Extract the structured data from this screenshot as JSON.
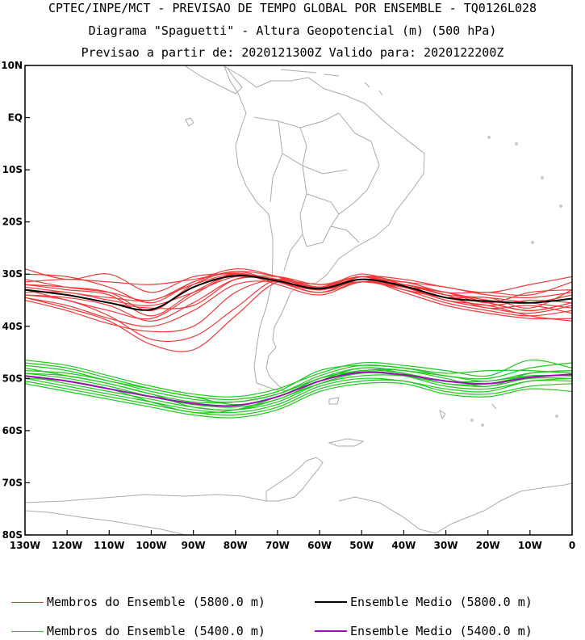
{
  "chart_data": {
    "type": "line",
    "title_lines": [
      "CPTEC/INPE/MCT - PREVISAO DE TEMPO GLOBAL POR ENSEMBLE - TQ0126L028",
      "Diagrama \"Spaguetti\" - Altura Geopotencial (m) (500 hPa)",
      "Previsao a partir de: 2020121300Z  Valido para: 2020122200Z"
    ],
    "x_range": [
      -130,
      0
    ],
    "y_range": [
      -80,
      10
    ],
    "x_ticks": [
      {
        "v": -130,
        "label": "130W"
      },
      {
        "v": -120,
        "label": "120W"
      },
      {
        "v": -110,
        "label": "110W"
      },
      {
        "v": -100,
        "label": "100W"
      },
      {
        "v": -90,
        "label": "90W"
      },
      {
        "v": -80,
        "label": "80W"
      },
      {
        "v": -70,
        "label": "70W"
      },
      {
        "v": -60,
        "label": "60W"
      },
      {
        "v": -50,
        "label": "50W"
      },
      {
        "v": -40,
        "label": "40W"
      },
      {
        "v": -30,
        "label": "30W"
      },
      {
        "v": -20,
        "label": "20W"
      },
      {
        "v": -10,
        "label": "10W"
      },
      {
        "v": 0,
        "label": "0"
      }
    ],
    "y_ticks": [
      {
        "v": 10,
        "label": "10N"
      },
      {
        "v": 0,
        "label": "EQ"
      },
      {
        "v": -10,
        "label": "10S"
      },
      {
        "v": -20,
        "label": "20S"
      },
      {
        "v": -30,
        "label": "30S"
      },
      {
        "v": -40,
        "label": "40S"
      },
      {
        "v": -50,
        "label": "50S"
      },
      {
        "v": -60,
        "label": "60S"
      },
      {
        "v": -70,
        "label": "70S"
      },
      {
        "v": -80,
        "label": "80S"
      }
    ],
    "x_knots": [
      -130,
      -120,
      -110,
      -100,
      -90,
      -80,
      -70,
      -60,
      -50,
      -40,
      -30,
      -20,
      -10,
      0
    ],
    "mean_5800": [
      -33.0,
      -34.0,
      -35.5,
      -36.8,
      -32.5,
      -30.3,
      -31.3,
      -32.8,
      -31.0,
      -32.3,
      -34.5,
      -35.2,
      -35.5,
      -34.7
    ],
    "mean_5400": [
      -49.5,
      -50.5,
      -52.0,
      -53.5,
      -54.8,
      -55.2,
      -53.5,
      -50.5,
      -48.8,
      -49.3,
      -50.5,
      -51.0,
      -49.8,
      -49.2
    ],
    "members_5800": [
      [
        -29.0,
        -31.0,
        -30.0,
        -33.5,
        -30.5,
        -30.0,
        -31.0,
        -33.0,
        -30.5,
        -31.0,
        -32.5,
        -33.5,
        -32.0,
        -30.5
      ],
      [
        -30.0,
        -30.5,
        -32.5,
        -35.5,
        -31.5,
        -29.5,
        -30.5,
        -32.5,
        -31.5,
        -31.5,
        -33.5,
        -33.5,
        -34.0,
        -31.5
      ],
      [
        -31.5,
        -31.0,
        -31.5,
        -32.0,
        -31.0,
        -29.8,
        -31.3,
        -32.5,
        -30.0,
        -32.0,
        -33.5,
        -35.5,
        -33.5,
        -33.0
      ],
      [
        -32.0,
        -32.5,
        -33.5,
        -37.0,
        -32.0,
        -29.5,
        -31.5,
        -33.5,
        -31.0,
        -32.5,
        -34.5,
        -34.5,
        -36.5,
        -33.0
      ],
      [
        -33.5,
        -33.5,
        -35.0,
        -36.0,
        -33.5,
        -30.5,
        -31.0,
        -32.0,
        -31.5,
        -32.0,
        -33.5,
        -35.0,
        -35.5,
        -34.0
      ],
      [
        -33.0,
        -35.0,
        -37.0,
        -38.5,
        -34.0,
        -30.0,
        -31.5,
        -33.0,
        -31.0,
        -33.0,
        -34.5,
        -36.0,
        -35.0,
        -35.5
      ],
      [
        -34.0,
        -34.5,
        -36.0,
        -39.0,
        -35.5,
        -31.0,
        -31.0,
        -32.5,
        -30.5,
        -32.5,
        -35.0,
        -36.5,
        -37.5,
        -36.0
      ],
      [
        -34.5,
        -36.0,
        -38.5,
        -40.0,
        -37.0,
        -32.0,
        -31.5,
        -33.0,
        -31.5,
        -33.0,
        -35.5,
        -37.0,
        -38.0,
        -37.0
      ],
      [
        -35.0,
        -37.0,
        -39.5,
        -41.0,
        -40.0,
        -33.5,
        -31.0,
        -32.5,
        -31.0,
        -33.5,
        -36.0,
        -37.5,
        -38.5,
        -38.5
      ],
      [
        -33.0,
        -34.0,
        -35.5,
        -36.5,
        -36.0,
        -31.0,
        -30.5,
        -32.0,
        -30.5,
        -32.0,
        -34.0,
        -36.5,
        -36.0,
        -37.5
      ],
      [
        -32.5,
        -33.5,
        -34.5,
        -35.0,
        -32.0,
        -30.0,
        -31.5,
        -33.5,
        -31.5,
        -32.0,
        -34.0,
        -34.5,
        -35.5,
        -36.5
      ],
      [
        -34.0,
        -35.0,
        -38.0,
        -42.5,
        -42.0,
        -36.5,
        -31.0,
        -33.0,
        -31.0,
        -32.5,
        -35.0,
        -36.0,
        -38.0,
        -39.0
      ],
      [
        -34.5,
        -36.5,
        -39.0,
        -43.5,
        -44.5,
        -38.0,
        -31.5,
        -32.5,
        -30.5,
        -33.0,
        -34.5,
        -35.5,
        -37.0,
        -35.5
      ],
      [
        -31.0,
        -32.5,
        -33.5,
        -35.0,
        -31.5,
        -29.0,
        -30.5,
        -33.0,
        -30.5,
        -31.5,
        -32.5,
        -34.0,
        -34.5,
        -33.5
      ],
      [
        -32.0,
        -33.0,
        -34.0,
        -38.0,
        -33.5,
        -30.0,
        -32.0,
        -34.0,
        -31.5,
        -32.5,
        -33.5,
        -35.5,
        -37.0,
        -35.5
      ]
    ],
    "members_5400": [
      [
        -46.5,
        -47.5,
        -49.5,
        -51.5,
        -53.0,
        -53.5,
        -52.0,
        -49.0,
        -47.0,
        -47.5,
        -48.5,
        -49.5,
        -46.5,
        -48.0
      ],
      [
        -47.5,
        -48.5,
        -50.5,
        -52.0,
        -53.5,
        -54.0,
        -52.5,
        -48.5,
        -47.5,
        -48.0,
        -49.5,
        -50.0,
        -48.0,
        -47.0
      ],
      [
        -48.0,
        -49.5,
        -51.0,
        -53.0,
        -54.5,
        -54.5,
        -53.0,
        -50.0,
        -48.5,
        -48.5,
        -50.0,
        -51.5,
        -49.0,
        -48.5
      ],
      [
        -49.0,
        -50.0,
        -51.5,
        -53.5,
        -55.0,
        -55.5,
        -54.0,
        -50.5,
        -48.0,
        -49.0,
        -50.5,
        -50.5,
        -49.5,
        -49.5
      ],
      [
        -49.5,
        -51.0,
        -52.5,
        -54.0,
        -55.5,
        -56.0,
        -54.0,
        -51.0,
        -49.5,
        -49.5,
        -51.0,
        -51.5,
        -50.0,
        -50.0
      ],
      [
        -50.0,
        -51.5,
        -53.0,
        -54.5,
        -56.0,
        -56.5,
        -55.0,
        -51.5,
        -50.0,
        -50.5,
        -52.0,
        -52.5,
        -50.5,
        -50.5
      ],
      [
        -50.5,
        -52.0,
        -53.5,
        -55.0,
        -56.5,
        -57.0,
        -55.5,
        -52.0,
        -50.5,
        -50.5,
        -52.5,
        -53.0,
        -51.5,
        -51.0
      ],
      [
        -51.0,
        -52.5,
        -54.0,
        -55.5,
        -57.0,
        -57.5,
        -56.0,
        -52.5,
        -51.0,
        -51.0,
        -53.0,
        -53.5,
        -52.0,
        -52.5
      ],
      [
        -48.5,
        -49.0,
        -50.5,
        -52.5,
        -54.0,
        -54.5,
        -53.0,
        -49.5,
        -47.5,
        -48.0,
        -49.0,
        -48.5,
        -48.5,
        -49.0
      ],
      [
        -47.0,
        -48.0,
        -50.0,
        -52.0,
        -53.5,
        -55.0,
        -53.5,
        -50.0,
        -48.0,
        -48.5,
        -49.5,
        -50.5,
        -49.0,
        -48.5
      ],
      [
        -49.0,
        -49.5,
        -51.0,
        -53.0,
        -55.5,
        -56.0,
        -54.5,
        -51.0,
        -49.0,
        -49.5,
        -51.5,
        -52.0,
        -50.5,
        -50.0
      ],
      [
        -50.0,
        -50.5,
        -52.0,
        -54.5,
        -56.5,
        -56.0,
        -53.5,
        -50.5,
        -48.5,
        -49.0,
        -51.0,
        -51.0,
        -49.5,
        -49.5
      ]
    ]
  },
  "legend": {
    "members_5800_label": "Membros do Ensemble (5800.0 m)",
    "mean_5800_label": "Ensemble Medio (5800.0 m)",
    "members_5400_label": "Membros do Ensemble (5400.0 m)",
    "mean_5400_label": "Ensemble Medio (5400.0 m)"
  },
  "colors": {
    "members_5800": "#f03a3a",
    "mean_5800": "#000000",
    "members_5400": "#1ec81e",
    "mean_5400": "#9a10b4",
    "coastline": "#aaaaaa"
  }
}
